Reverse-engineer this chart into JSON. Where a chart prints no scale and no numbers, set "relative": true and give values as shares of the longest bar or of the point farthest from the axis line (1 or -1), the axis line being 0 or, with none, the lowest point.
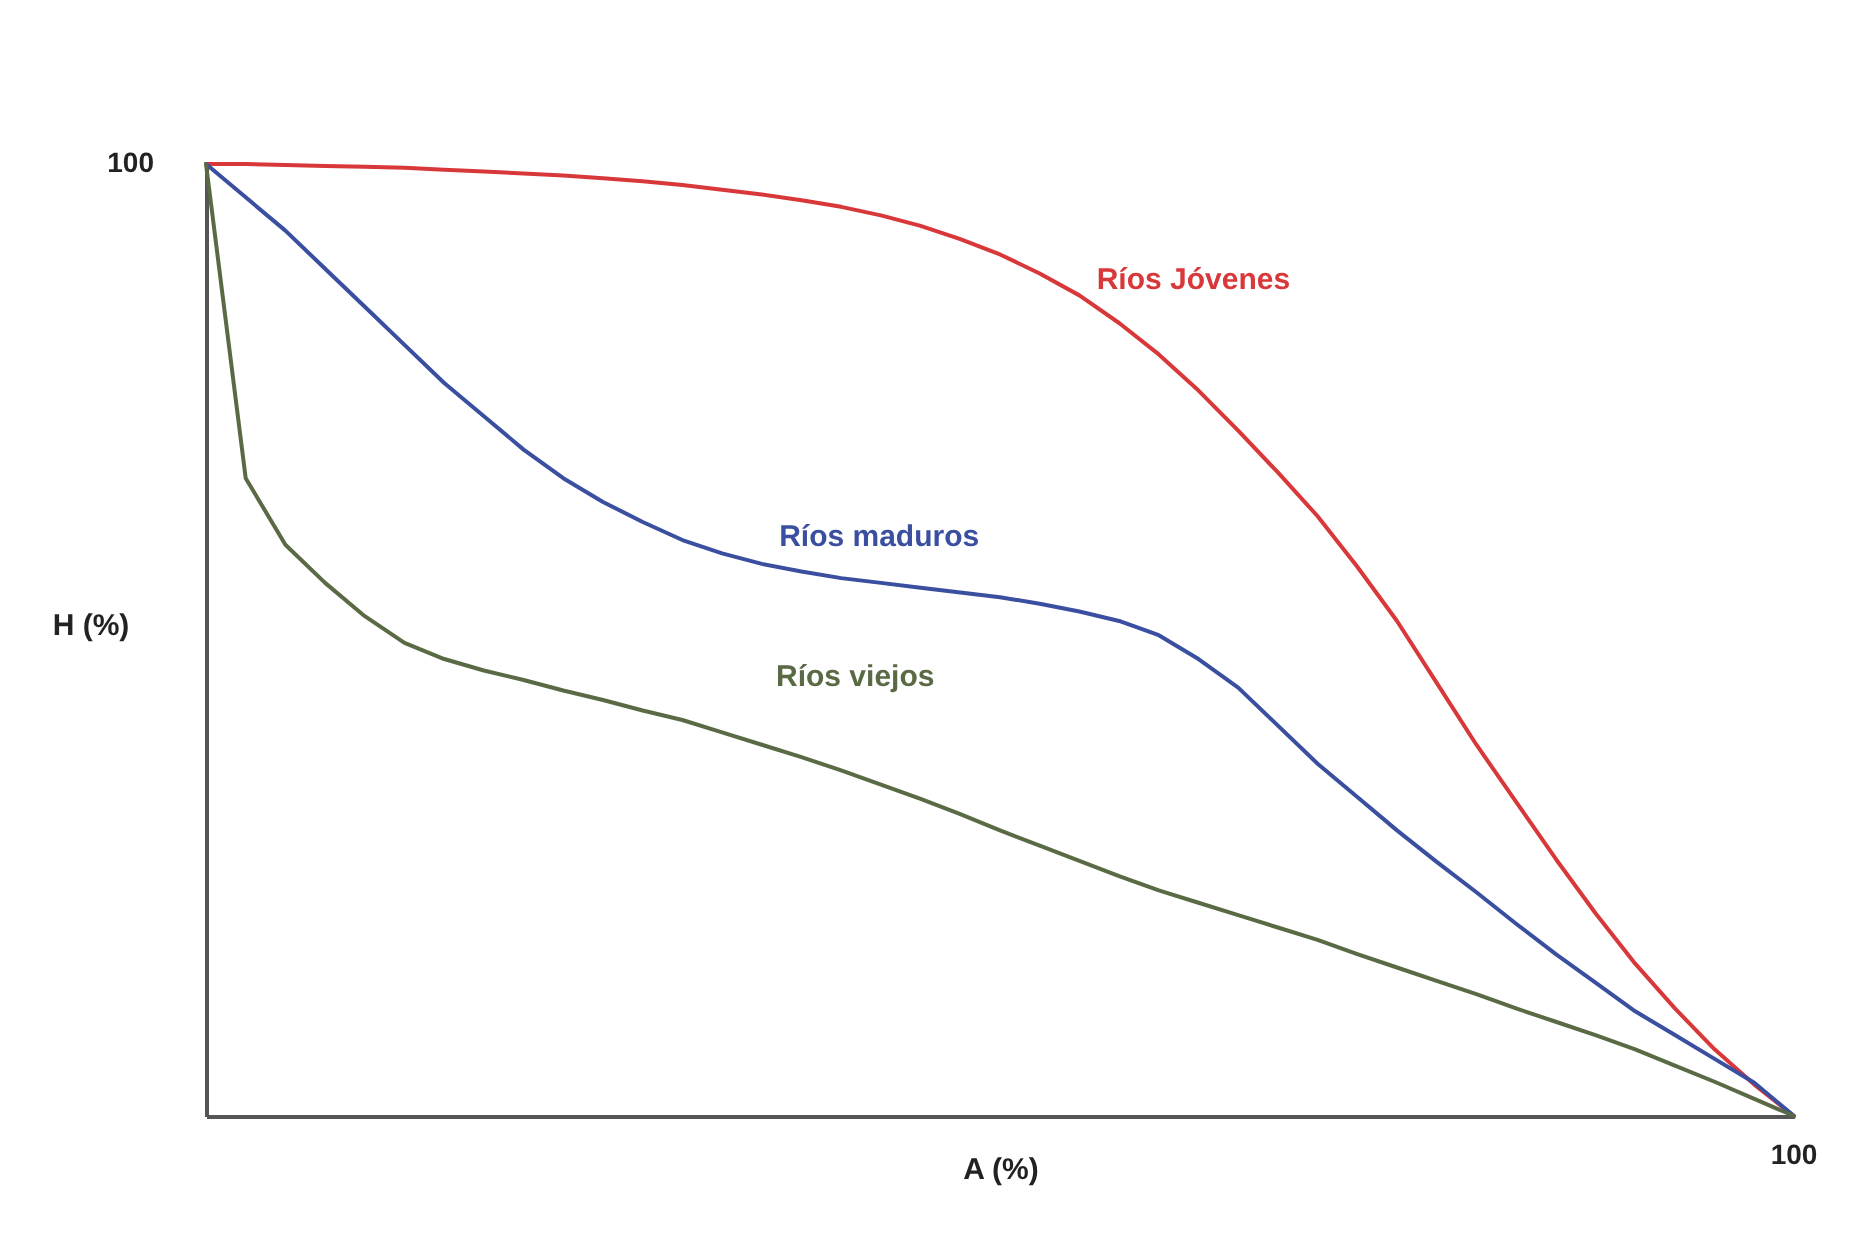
{
  "chart_data": {
    "type": "line",
    "relative": true,
    "xlabel": "A (%)",
    "ylabel": "H (%)",
    "annotations": [
      "100",
      "100"
    ],
    "grid": false,
    "legend": false,
    "marker": "none",
    "line_style": "solid",
    "categories": [
      null,
      null,
      null,
      null,
      null,
      null,
      null,
      null,
      null,
      null,
      null,
      null,
      null,
      null,
      null,
      null,
      null,
      null,
      null,
      null,
      null,
      null,
      null,
      null,
      null,
      null,
      null,
      null,
      null,
      null,
      null,
      null,
      null,
      null,
      null,
      null,
      null,
      null,
      null,
      null,
      null
    ],
    "series": [
      {
        "name": "Ríos Jóvenes",
        "color": "#d9383a",
        "values": [
          1,
          1,
          0.999,
          0.998,
          0.997,
          0.996,
          0.994,
          0.992,
          0.99,
          0.988,
          0.985,
          0.982,
          0.978,
          0.973,
          0.968,
          0.962,
          0.955,
          0.946,
          0.935,
          0.921,
          0.905,
          0.885,
          0.862,
          0.833,
          0.8,
          0.762,
          0.72,
          0.676,
          0.63,
          0.577,
          0.52,
          0.455,
          0.39,
          0.33,
          0.27,
          0.213,
          0.16,
          0.113,
          0.07,
          0.033,
          0
        ]
      },
      {
        "name": "Ríos maduros",
        "color": "#3a4fa0",
        "values": [
          1,
          0.965,
          0.93,
          0.89,
          0.85,
          0.81,
          0.77,
          0.735,
          0.7,
          0.67,
          0.645,
          0.624,
          0.605,
          0.591,
          0.58,
          0.572,
          0.565,
          0.56,
          0.555,
          0.55,
          0.545,
          0.538,
          0.53,
          0.52,
          0.505,
          0.48,
          0.45,
          0.41,
          0.37,
          0.335,
          0.3,
          0.267,
          0.235,
          0.202,
          0.17,
          0.14,
          0.11,
          0.085,
          0.06,
          0.035,
          0
        ]
      },
      {
        "name": "Ríos viejos",
        "color": "#5a6a45",
        "values": [
          1,
          0.67,
          0.6,
          0.56,
          0.525,
          0.497,
          0.48,
          0.468,
          0.458,
          0.447,
          0.437,
          0.426,
          0.416,
          0.403,
          0.39,
          0.377,
          0.363,
          0.348,
          0.333,
          0.317,
          0.3,
          0.284,
          0.268,
          0.252,
          0.237,
          0.224,
          0.211,
          0.198,
          0.185,
          0.17,
          0.156,
          0.142,
          0.128,
          0.113,
          0.099,
          0.085,
          0.07,
          0.053,
          0.036,
          0.018,
          0
        ]
      }
    ]
  }
}
